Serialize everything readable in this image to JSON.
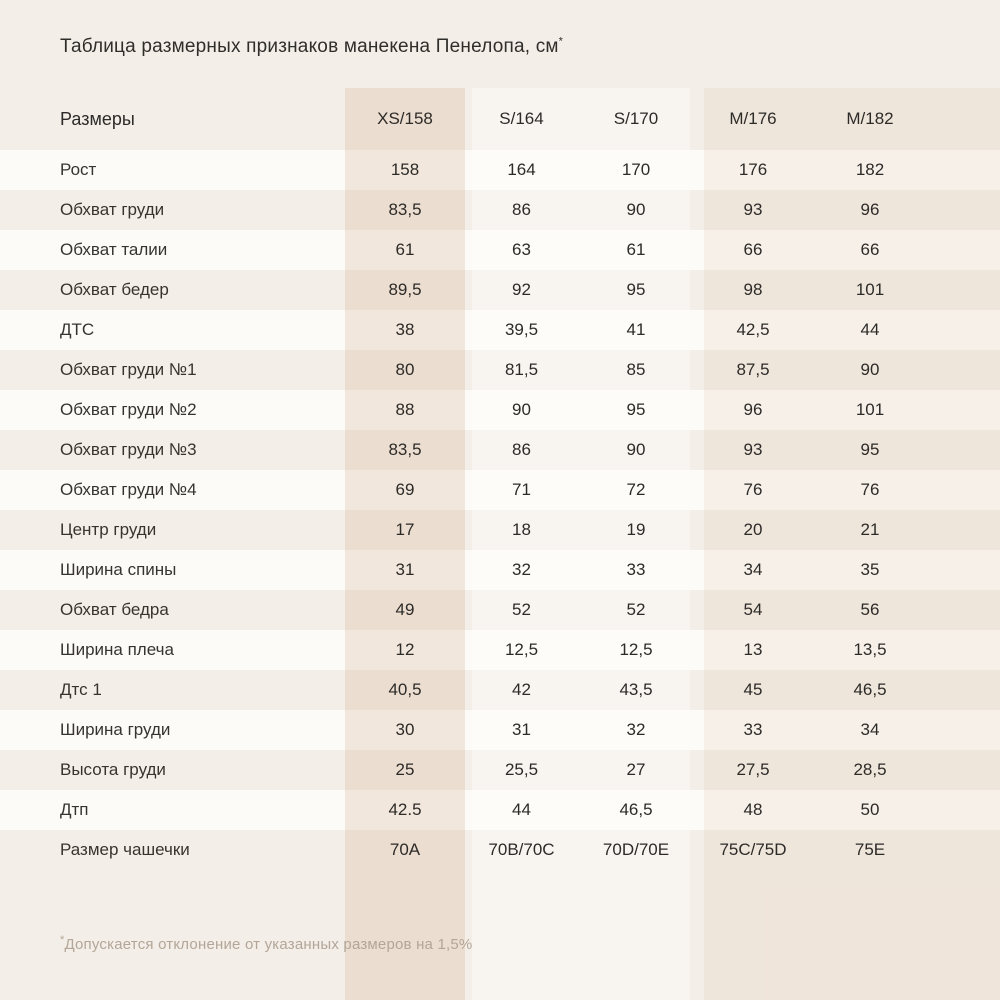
{
  "title": {
    "text": "Таблица размерных признаков манекена Пенелопа, см",
    "superscript": "*"
  },
  "table": {
    "header": {
      "label": "Размеры",
      "columns": [
        "XS/158",
        "S/164",
        "S/170",
        "M/176",
        "M/182"
      ]
    },
    "rows": [
      {
        "label": "Рост",
        "values": [
          "158",
          "164",
          "170",
          "176",
          "182"
        ]
      },
      {
        "label": "Обхват груди",
        "values": [
          "83,5",
          "86",
          "90",
          "93",
          "96"
        ]
      },
      {
        "label": "Обхват талии",
        "values": [
          "61",
          "63",
          "61",
          "66",
          "66"
        ]
      },
      {
        "label": "Обхват бедер",
        "values": [
          "89,5",
          "92",
          "95",
          "98",
          "101"
        ]
      },
      {
        "label": "ДТС",
        "values": [
          "38",
          "39,5",
          "41",
          "42,5",
          "44"
        ]
      },
      {
        "label": "Обхват груди №1",
        "values": [
          "80",
          "81,5",
          "85",
          "87,5",
          "90"
        ]
      },
      {
        "label": "Обхват груди №2",
        "values": [
          "88",
          "90",
          "95",
          "96",
          "101"
        ]
      },
      {
        "label": "Обхват груди №3",
        "values": [
          "83,5",
          "86",
          "90",
          "93",
          "95"
        ]
      },
      {
        "label": "Обхват груди №4",
        "values": [
          "69",
          "71",
          "72",
          "76",
          "76"
        ]
      },
      {
        "label": "Центр груди",
        "values": [
          "17",
          "18",
          "19",
          "20",
          "21"
        ]
      },
      {
        "label": "Ширина спины",
        "values": [
          "31",
          "32",
          "33",
          "34",
          "35"
        ]
      },
      {
        "label": "Обхват бедра",
        "values": [
          "49",
          "52",
          "52",
          "54",
          "56"
        ]
      },
      {
        "label": "Ширина плеча",
        "values": [
          "12",
          "12,5",
          "12,5",
          "13",
          "13,5"
        ]
      },
      {
        "label": "Дтс 1",
        "values": [
          "40,5",
          "42",
          "43,5",
          "45",
          "46,5"
        ]
      },
      {
        "label": "Ширина груди",
        "values": [
          "30",
          "31",
          "32",
          "33",
          "34"
        ]
      },
      {
        "label": "Высота груди",
        "values": [
          "25",
          "25,5",
          "27",
          "27,5",
          "28,5"
        ]
      },
      {
        "label": "Дтп",
        "values": [
          "42.5",
          "44",
          "46,5",
          "48",
          "50"
        ]
      },
      {
        "label": "Размер чашечки",
        "values": [
          "70A",
          "70B/70C",
          "70D/70E",
          "75C/75D",
          "75E"
        ]
      }
    ]
  },
  "footnote": {
    "superscript": "*",
    "text": "Допускается отклонение от указанных размеров на 1,5%"
  },
  "colors": {
    "page_background": "#f3eee8",
    "white_row": "#fdfbf8",
    "band_xs_on_beige": "#ebddd0",
    "band_xs_on_white": "#f2e7dc",
    "band_m_on_beige": "#eee5db",
    "band_m_on_white": "#f7f0e9",
    "band_s_on_beige": "#f8f5f0",
    "title_text": "#302e2b",
    "body_text": "#37342f",
    "footnote_text": "#b3a698"
  }
}
